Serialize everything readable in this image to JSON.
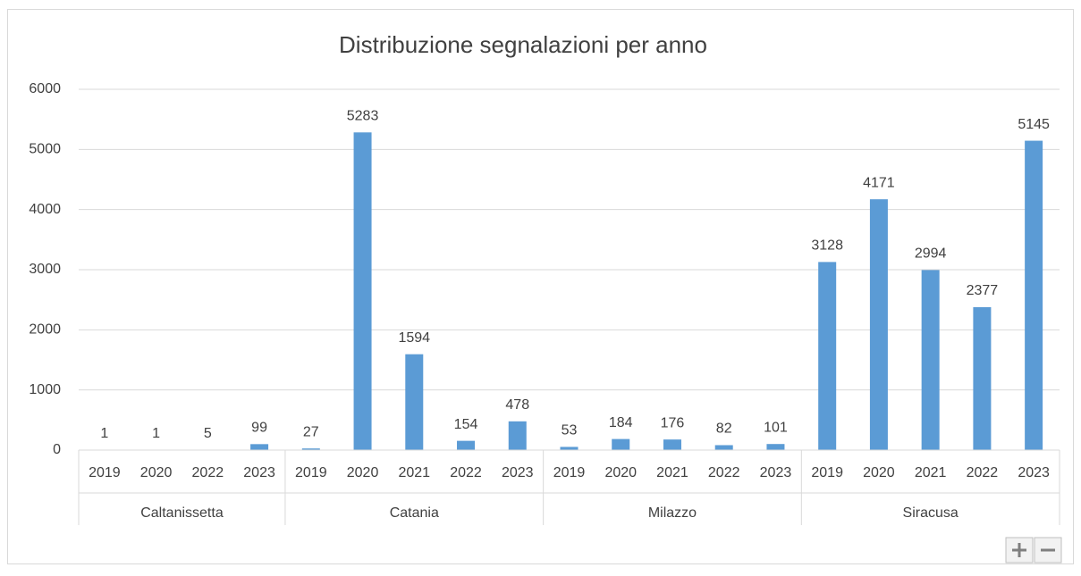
{
  "chart_data": {
    "type": "bar",
    "title": "Distribuzione segnalazioni per anno",
    "color": "#5b9bd5",
    "ylim": [
      0,
      6000
    ],
    "yticks": [
      0,
      1000,
      2000,
      3000,
      4000,
      5000,
      6000
    ],
    "grid": true,
    "groups": [
      {
        "name": "Caltanissetta",
        "categories": [
          "2019",
          "2020",
          "2022",
          "2023"
        ],
        "values": [
          1,
          1,
          5,
          99
        ]
      },
      {
        "name": "Catania",
        "categories": [
          "2019",
          "2020",
          "2021",
          "2022",
          "2023"
        ],
        "values": [
          27,
          5283,
          1594,
          154,
          478
        ]
      },
      {
        "name": "Milazzo",
        "categories": [
          "2019",
          "2020",
          "2021",
          "2022",
          "2023"
        ],
        "values": [
          53,
          184,
          176,
          82,
          101
        ]
      },
      {
        "name": "Siracusa",
        "categories": [
          "2019",
          "2020",
          "2021",
          "2022",
          "2023"
        ],
        "values": [
          3128,
          4171,
          2994,
          2377,
          5145
        ]
      }
    ]
  }
}
